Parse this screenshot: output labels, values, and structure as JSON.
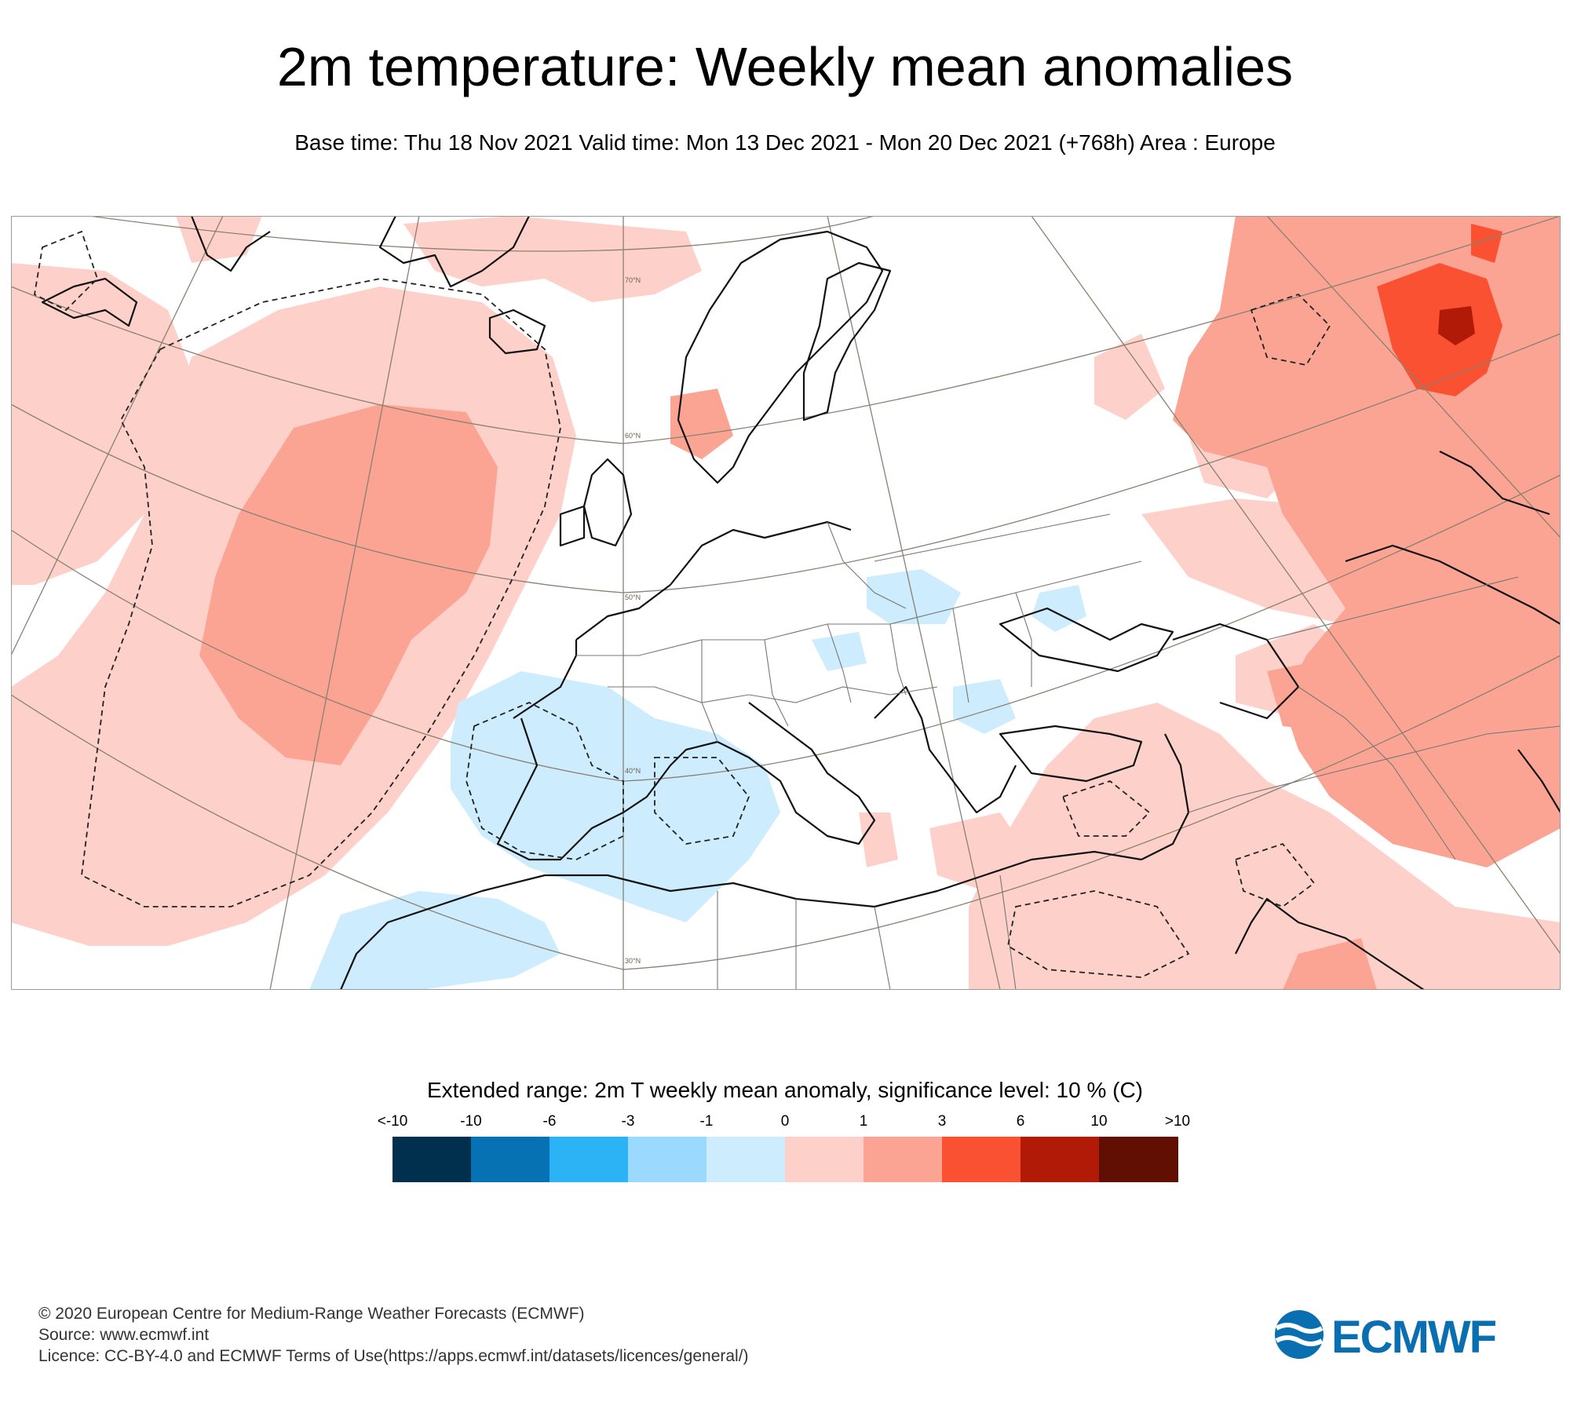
{
  "title": "2m temperature: Weekly mean anomalies",
  "subtitle": "Base time: Thu 18 Nov 2021 Valid time: Mon 13 Dec 2021 - Mon 20 Dec 2021 (+768h) Area : Europe",
  "map": {
    "lat_labels": [
      "70°N",
      "60°N",
      "50°N",
      "40°N",
      "30°N"
    ]
  },
  "legend": {
    "title": "Extended range: 2m T weekly mean anomaly, significance level: 10 % (C)",
    "tick_labels": [
      "<-10",
      "-10",
      "-6",
      "-3",
      "-1",
      "0",
      "1",
      "3",
      "6",
      "10",
      ">10"
    ],
    "colors": [
      "#00304d",
      "#0672b3",
      "#2bb3f5",
      "#9bdafe",
      "#cdecfd",
      "#fdd0c9",
      "#fba494",
      "#fb5133",
      "#b01a06",
      "#610f03"
    ]
  },
  "colors": {
    "neutral": "#ffffff",
    "warm_1": "#fdd0c9",
    "warm_3": "#fba494",
    "warm_6": "#fb5133",
    "warm_10": "#b01a06",
    "cool_1": "#cdecfd",
    "ecmwf_blue": "#0a6fb0"
  },
  "footer": {
    "line1": "© 2020 European Centre for Medium-Range Weather Forecasts (ECMWF)",
    "line2": "Source: www.ecmwf.int",
    "line3": "Licence: CC-BY-4.0 and ECMWF Terms of Use(https://apps.ecmwf.int/datasets/licences/general/)"
  },
  "logo_text": "ECMWF"
}
